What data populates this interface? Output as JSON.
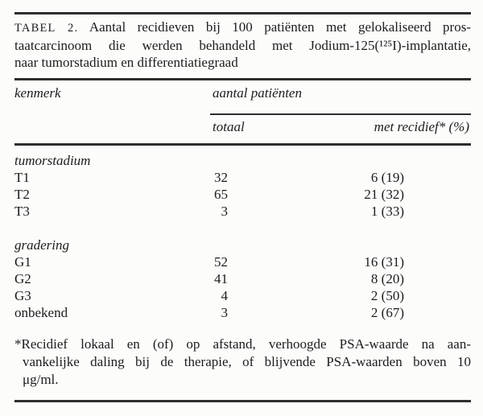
{
  "table": {
    "caption": {
      "label": "TABEL 2.",
      "line1_rest": "Aantal recidieven bij 100 patiënten met gelokaliseerd pros-",
      "line2": "taatcarcinoom die werden behandeld met Jodium-125(¹²⁵I)-implantatie,",
      "line3": "naar tumorstadium en differentiatiegraad"
    },
    "header": {
      "col1": "kenmerk",
      "group": "aantal patiënten",
      "sub1": "totaal",
      "sub2": "met recidief* (%)"
    },
    "sections": [
      {
        "title": "tumorstadium",
        "rows": [
          {
            "label": "T1",
            "totaal": "32",
            "recidief": "6 (19)"
          },
          {
            "label": "T2",
            "totaal": "65",
            "recidief": "21 (32)"
          },
          {
            "label": "T3",
            "totaal": "3",
            "recidief": "1 (33)"
          }
        ]
      },
      {
        "title": "gradering",
        "rows": [
          {
            "label": "G1",
            "totaal": "52",
            "recidief": "16 (31)"
          },
          {
            "label": "G2",
            "totaal": "41",
            "recidief": "8 (20)"
          },
          {
            "label": "G3",
            "totaal": "4",
            "recidief": "2 (50)"
          },
          {
            "label": "onbekend",
            "totaal": "3",
            "recidief": "2 (67)"
          }
        ]
      }
    ],
    "footnote_lines": [
      "*Recidief lokaal en (of) op afstand, verhoogde PSA-waarde na aan-",
      "vankelijke daling bij de therapie, of blijvende PSA-waarden boven 10",
      "μg/ml."
    ]
  },
  "chart_data": {
    "type": "table",
    "title": "TABEL 2. Aantal recidieven bij 100 patiënten met gelokaliseerd prostaatcarcinoom die werden behandeld met Jodium-125(¹²⁵I)-implantatie, naar tumorstadium en differentiatiegraad",
    "columns": [
      "kenmerk",
      "totaal",
      "met recidief* (%)"
    ],
    "rows": [
      [
        "tumorstadium",
        null,
        null
      ],
      [
        "T1",
        32,
        "6 (19)"
      ],
      [
        "T2",
        65,
        "21 (32)"
      ],
      [
        "T3",
        3,
        "1 (33)"
      ],
      [
        "gradering",
        null,
        null
      ],
      [
        "G1",
        52,
        "16 (31)"
      ],
      [
        "G2",
        41,
        "8 (20)"
      ],
      [
        "G3",
        4,
        "2 (50)"
      ],
      [
        "onbekend",
        3,
        "2 (67)"
      ]
    ],
    "footnote": "*Recidief lokaal en (of) op afstand, verhoogde PSA-waarde na aanvankelijke daling bij de therapie, of blijvende PSA-waarden boven 10 μg/ml."
  },
  "colors": {
    "background": "#fcfcfb",
    "text": "#1c1c1c",
    "rule": "#2e2e2e"
  }
}
